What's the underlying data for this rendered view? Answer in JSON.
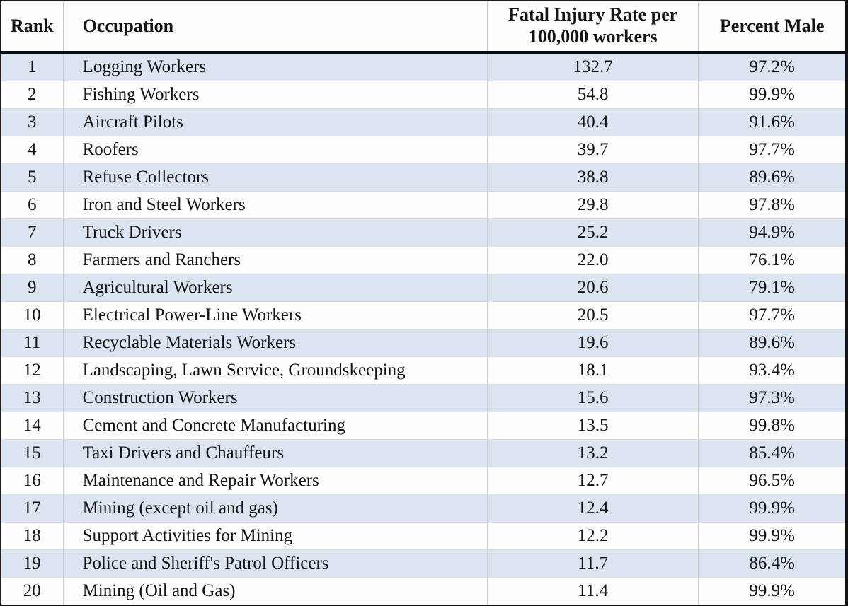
{
  "headers": {
    "rate_line1": "Fatal Injury Rate per",
    "rate_line2": "100,000 workers"
  },
  "colors": {
    "row_shaded": "#dbe5f1",
    "row_plain": "#fefefe",
    "header_divider": "#0c0c0c",
    "grid_line": "#cdd2d9",
    "text": "#141414"
  },
  "chart_data": {
    "type": "table",
    "title": "",
    "columns": [
      "Rank",
      "Occupation",
      "Fatal Injury Rate per 100,000 workers",
      "Percent Male"
    ],
    "rows": [
      [
        "1",
        "Logging Workers",
        "132.7",
        "97.2%"
      ],
      [
        "2",
        "Fishing Workers",
        "54.8",
        "99.9%"
      ],
      [
        "3",
        "Aircraft Pilots",
        "40.4",
        "91.6%"
      ],
      [
        "4",
        "Roofers",
        "39.7",
        "97.7%"
      ],
      [
        "5",
        "Refuse Collectors",
        "38.8",
        "89.6%"
      ],
      [
        "6",
        "Iron and Steel Workers",
        "29.8",
        "97.8%"
      ],
      [
        "7",
        "Truck Drivers",
        "25.2",
        "94.9%"
      ],
      [
        "8",
        "Farmers and Ranchers",
        "22.0",
        "76.1%"
      ],
      [
        "9",
        "Agricultural Workers",
        "20.6",
        "79.1%"
      ],
      [
        "10",
        "Electrical Power-Line Workers",
        "20.5",
        "97.7%"
      ],
      [
        "11",
        "Recyclable Materials Workers",
        "19.6",
        "89.6%"
      ],
      [
        "12",
        "Landscaping, Lawn Service, Groundskeeping",
        "18.1",
        "93.4%"
      ],
      [
        "13",
        "Construction Workers",
        "15.6",
        "97.3%"
      ],
      [
        "14",
        "Cement and Concrete Manufacturing",
        "13.5",
        "99.8%"
      ],
      [
        "15",
        "Taxi Drivers and Chauffeurs",
        "13.2",
        "85.4%"
      ],
      [
        "16",
        "Maintenance and Repair Workers",
        "12.7",
        "96.5%"
      ],
      [
        "17",
        "Mining (except oil and gas)",
        "12.4",
        "99.9%"
      ],
      [
        "18",
        "Support Activities for Mining",
        "12.2",
        "99.9%"
      ],
      [
        "19",
        "Police and Sheriff's Patrol Officers",
        "11.7",
        "86.4%"
      ],
      [
        "20",
        "Mining (Oil and Gas)",
        "11.4",
        "99.9%"
      ]
    ]
  }
}
